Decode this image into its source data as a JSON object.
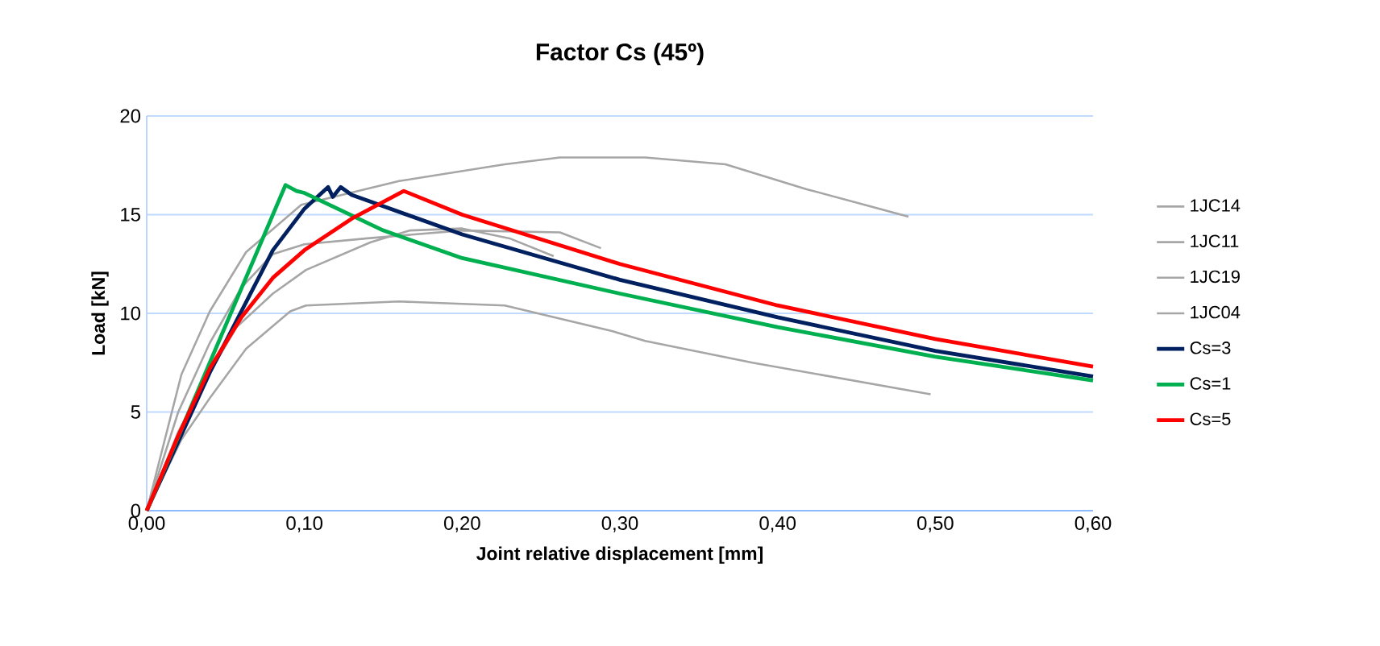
{
  "chart_data": {
    "type": "line",
    "title": "Factor Cs (45º)",
    "xlabel": "Joint relative displacement  [mm]",
    "ylabel": "Load [kN]",
    "xlim": [
      0,
      0.6
    ],
    "ylim": [
      0,
      20
    ],
    "xticks": [
      {
        "value": 0,
        "label": "0,00"
      },
      {
        "value": 0.1,
        "label": "0,10"
      },
      {
        "value": 0.2,
        "label": "0,20"
      },
      {
        "value": 0.3,
        "label": "0,30"
      },
      {
        "value": 0.4,
        "label": "0,40"
      },
      {
        "value": 0.5,
        "label": "0,50"
      },
      {
        "value": 0.6,
        "label": "0,60"
      }
    ],
    "yticks": [
      0,
      5,
      10,
      15,
      20
    ],
    "grid": "y",
    "legend": "right",
    "marker": "none",
    "line_style": "solid",
    "series": [
      {
        "name": "1JC14",
        "color": "#a6a6a6",
        "x": [
          0,
          0.022,
          0.04,
          0.063,
          0.098,
          0.16,
          0.227,
          0.262,
          0.316,
          0.367,
          0.418,
          0.483
        ],
        "values": [
          0,
          6.9,
          10.1,
          13.1,
          15.5,
          16.7,
          17.55,
          17.9,
          17.9,
          17.55,
          16.3,
          14.9
        ]
      },
      {
        "name": "1JC11",
        "color": "#a6a6a6",
        "x": [
          0,
          0.02,
          0.04,
          0.06,
          0.08,
          0.1,
          0.14,
          0.2,
          0.262,
          0.288
        ],
        "values": [
          0,
          5,
          8.5,
          11.3,
          13,
          13.5,
          13.8,
          14.2,
          14.1,
          13.3
        ]
      },
      {
        "name": "1JC19",
        "color": "#a6a6a6",
        "x": [
          0,
          0.02,
          0.04,
          0.057,
          0.08,
          0.101,
          0.142,
          0.167,
          0.2,
          0.23,
          0.258
        ],
        "values": [
          0,
          4,
          7,
          9.3,
          11,
          12.2,
          13.6,
          14.2,
          14.3,
          13.8,
          12.9
        ]
      },
      {
        "name": "1JC04",
        "color": "#a6a6a6",
        "x": [
          0,
          0.022,
          0.04,
          0.063,
          0.091,
          0.101,
          0.16,
          0.227,
          0.295,
          0.316,
          0.384,
          0.497
        ],
        "values": [
          0,
          3.6,
          5.7,
          8.2,
          10.1,
          10.4,
          10.6,
          10.4,
          9.1,
          8.6,
          7.5,
          5.9
        ]
      },
      {
        "name": "Cs=3",
        "color": "#002060",
        "x": [
          0,
          0.04,
          0.08,
          0.1,
          0.115,
          0.118,
          0.123,
          0.13,
          0.2,
          0.3,
          0.4,
          0.5,
          0.6
        ],
        "values": [
          0,
          7,
          13.2,
          15.3,
          16.4,
          15.9,
          16.4,
          16.0,
          14.0,
          11.7,
          9.8,
          8.1,
          6.8
        ]
      },
      {
        "name": "Cs=1",
        "color": "#00b050",
        "x": [
          0,
          0.088,
          0.095,
          0.1,
          0.15,
          0.2,
          0.3,
          0.4,
          0.5,
          0.6
        ],
        "values": [
          0,
          16.5,
          16.2,
          16.1,
          14.2,
          12.8,
          11.0,
          9.3,
          7.8,
          6.6
        ]
      },
      {
        "name": "Cs=5",
        "color": "#ff0000",
        "x": [
          0,
          0.02,
          0.04,
          0.06,
          0.08,
          0.1,
          0.13,
          0.163,
          0.2,
          0.3,
          0.4,
          0.5,
          0.6
        ],
        "values": [
          0,
          3.8,
          7.2,
          9.8,
          11.8,
          13.2,
          14.8,
          16.2,
          15.0,
          12.5,
          10.4,
          8.7,
          7.3
        ]
      }
    ]
  }
}
